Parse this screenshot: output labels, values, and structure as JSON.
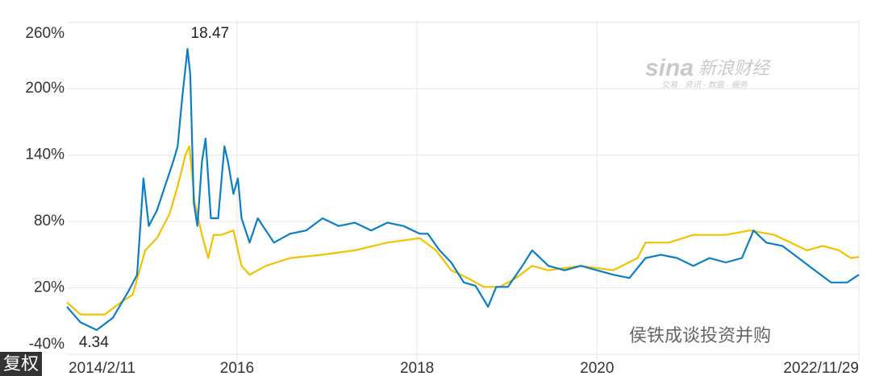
{
  "chart_data": {
    "type": "line",
    "xlim": [
      2014.11,
      2022.91
    ],
    "ylim": [
      -45,
      262
    ],
    "xticks": [
      {
        "value": 2014.11,
        "label": "2014/2/11"
      },
      2016,
      2018,
      2020,
      {
        "value": 2022.91,
        "label": "2022/11/29"
      }
    ],
    "yticks": [
      {
        "value": 260,
        "label": "260%"
      },
      {
        "value": 200,
        "label": "200%"
      },
      {
        "value": 140,
        "label": "140%"
      },
      {
        "value": 80,
        "label": "80%"
      },
      {
        "value": 20,
        "label": "20%"
      },
      {
        "value": -40,
        "label": "-40%"
      }
    ],
    "grid": true,
    "series": [
      {
        "color": "#0a7fc5",
        "x": [
          2014.11,
          2014.26,
          2014.44,
          2014.62,
          2014.8,
          2014.89,
          2014.96,
          2015.02,
          2015.11,
          2015.2,
          2015.29,
          2015.34,
          2015.39,
          2015.45,
          2015.48,
          2015.52,
          2015.56,
          2015.61,
          2015.65,
          2015.71,
          2015.79,
          2015.86,
          2015.9,
          2015.96,
          2016.01,
          2016.05,
          2016.14,
          2016.23,
          2016.41,
          2016.59,
          2016.77,
          2016.95,
          2017.13,
          2017.31,
          2017.49,
          2017.67,
          2017.85,
          2018.03,
          2018.12,
          2018.25,
          2018.38,
          2018.52,
          2018.65,
          2018.79,
          2018.88,
          2019.01,
          2019.17,
          2019.28,
          2019.46,
          2019.64,
          2019.82,
          2020.0,
          2020.18,
          2020.36,
          2020.54,
          2020.71,
          2020.89,
          2021.07,
          2021.25,
          2021.43,
          2021.61,
          2021.74,
          2021.88,
          2022.06,
          2022.24,
          2022.42,
          2022.6,
          2022.78,
          2022.91
        ],
        "values": [
          3,
          -11,
          -18,
          -7,
          18,
          32,
          119,
          76,
          90,
          112,
          134,
          148,
          191,
          236,
          213,
          97,
          76,
          134,
          155,
          83,
          83,
          148,
          134,
          105,
          119,
          83,
          61,
          83,
          61,
          69,
          72,
          83,
          76,
          79,
          72,
          79,
          76,
          69,
          69,
          54,
          43,
          25,
          22,
          3,
          21,
          21,
          40,
          54,
          40,
          36,
          40,
          36,
          32,
          29,
          47,
          50,
          47,
          40,
          47,
          43,
          47,
          72,
          61,
          58,
          47,
          36,
          25,
          25,
          32
        ]
      },
      {
        "color": "#f2c200",
        "x": [
          2014.11,
          2014.26,
          2014.53,
          2014.71,
          2014.84,
          2014.98,
          2015.11,
          2015.25,
          2015.34,
          2015.43,
          2015.47,
          2015.53,
          2015.61,
          2015.68,
          2015.74,
          2015.83,
          2015.96,
          2016.05,
          2016.14,
          2016.32,
          2016.59,
          2016.95,
          2017.31,
          2017.67,
          2018.03,
          2018.21,
          2018.38,
          2018.56,
          2018.74,
          2018.92,
          2019.1,
          2019.28,
          2019.46,
          2019.82,
          2020.18,
          2020.45,
          2020.54,
          2020.8,
          2021.07,
          2021.25,
          2021.43,
          2021.7,
          2021.97,
          2022.15,
          2022.33,
          2022.51,
          2022.69,
          2022.82,
          2022.91
        ],
        "values": [
          7,
          -4,
          -4,
          7,
          14,
          54,
          65,
          87,
          112,
          141,
          148,
          97,
          68,
          47,
          68,
          68,
          72,
          40,
          32,
          40,
          47,
          50,
          54,
          61,
          65,
          54,
          36,
          29,
          21,
          21,
          29,
          40,
          36,
          40,
          36,
          47,
          61,
          61,
          68,
          68,
          68,
          72,
          68,
          61,
          54,
          58,
          54,
          47,
          48
        ]
      }
    ],
    "annotations": [
      "18.47",
      "4.34"
    ]
  },
  "watermark": {
    "logo": "sina",
    "brand": "新浪财经",
    "slogan": "交易 · 资讯 · 数据 · 服务"
  },
  "wechat_watermark": "侯铁成谈投资并购",
  "button": "复权"
}
